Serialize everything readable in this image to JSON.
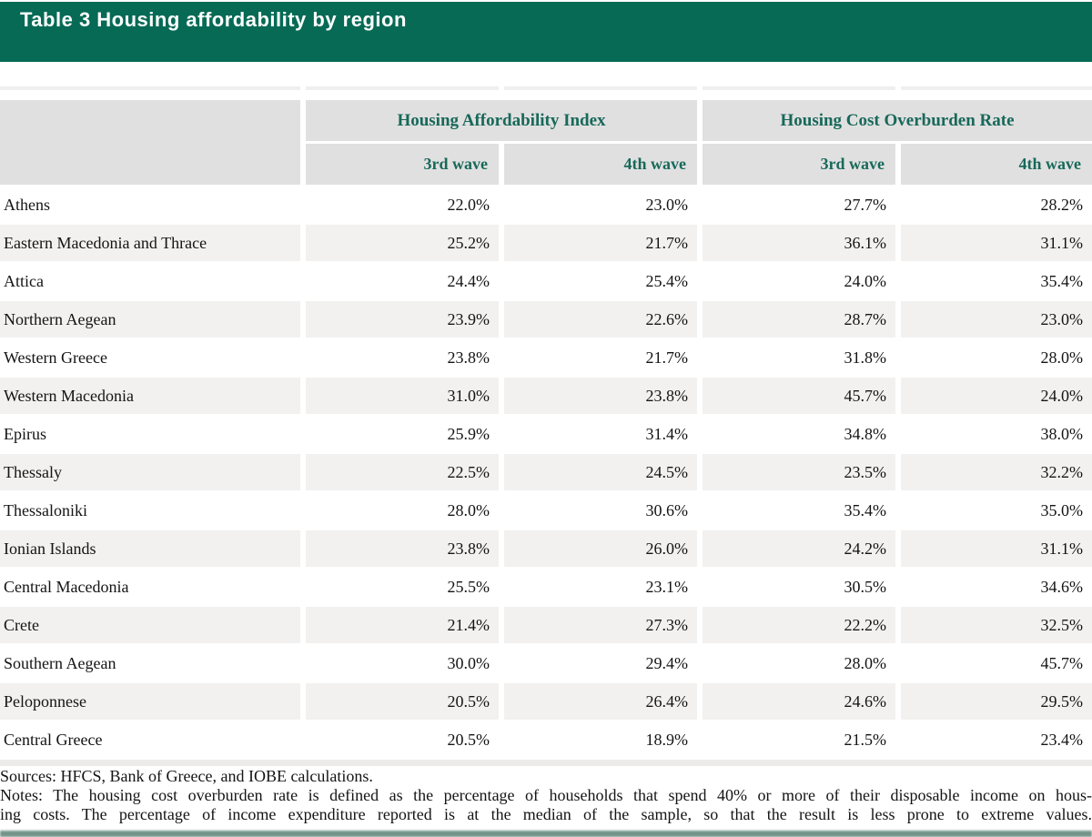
{
  "title_bar": {
    "title": "Table 3 Housing affordability by region"
  },
  "table": {
    "group_headers": [
      "Housing Affordability Index",
      "Housing Cost Overburden Rate"
    ],
    "sub_headers": [
      "3rd wave",
      "4th wave",
      "3rd wave",
      "4th wave"
    ],
    "rows": [
      {
        "region": "Athens",
        "values": [
          "22.0%",
          "23.0%",
          "27.7%",
          "28.2%"
        ]
      },
      {
        "region": "Eastern Macedonia and Thrace",
        "values": [
          "25.2%",
          "21.7%",
          "36.1%",
          "31.1%"
        ]
      },
      {
        "region": "Attica",
        "values": [
          "24.4%",
          "25.4%",
          "24.0%",
          "35.4%"
        ]
      },
      {
        "region": "Northern Aegean",
        "values": [
          "23.9%",
          "22.6%",
          "28.7%",
          "23.0%"
        ]
      },
      {
        "region": "Western Greece",
        "values": [
          "23.8%",
          "21.7%",
          "31.8%",
          "28.0%"
        ]
      },
      {
        "region": "Western Macedonia",
        "values": [
          "31.0%",
          "23.8%",
          "45.7%",
          "24.0%"
        ]
      },
      {
        "region": "Epirus",
        "values": [
          "25.9%",
          "31.4%",
          "34.8%",
          "38.0%"
        ]
      },
      {
        "region": "Thessaly",
        "values": [
          "22.5%",
          "24.5%",
          "23.5%",
          "32.2%"
        ]
      },
      {
        "region": "Thessaloniki",
        "values": [
          "28.0%",
          "30.6%",
          "35.4%",
          "35.0%"
        ]
      },
      {
        "region": "Ionian Islands",
        "values": [
          "23.8%",
          "26.0%",
          "24.2%",
          "31.1%"
        ]
      },
      {
        "region": "Central Macedonia",
        "values": [
          "25.5%",
          "23.1%",
          "30.5%",
          "34.6%"
        ]
      },
      {
        "region": "Crete",
        "values": [
          "21.4%",
          "27.3%",
          "22.2%",
          "32.5%"
        ]
      },
      {
        "region": "Southern Aegean",
        "values": [
          "30.0%",
          "29.4%",
          "28.0%",
          "45.7%"
        ]
      },
      {
        "region": "Peloponnese",
        "values": [
          "20.5%",
          "26.4%",
          "24.6%",
          "29.5%"
        ]
      },
      {
        "region": "Central Greece",
        "values": [
          "20.5%",
          "18.9%",
          "21.5%",
          "23.4%"
        ]
      }
    ]
  },
  "footer": {
    "sources": "Sources: HFCS, Bank of Greece, and IOBE calculations.",
    "notes_line1": "Notes: The housing cost overburden rate is defined as the percentage of households that spend 40% or more of their disposable income on hous-",
    "notes_line2": "ing costs. The percentage of income expenditure reported is at the median of the sample, so that the result is less prone to extreme values."
  },
  "colors": {
    "title_bar_green": "#066a55",
    "header_text_green": "#17695a",
    "header_cell_gray": "#e1e0e0",
    "row_alt_gray": "#f2f1f0",
    "bottom_edge_green": "#5a8173"
  }
}
